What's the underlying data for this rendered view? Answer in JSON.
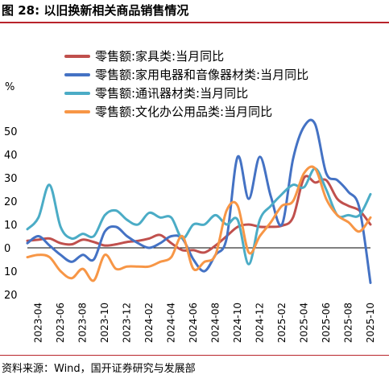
{
  "header": {
    "title": "图 28:  以旧换新相关商品销售情况"
  },
  "footer": {
    "source": "资料来源：Wind，国开证券研究与发展部"
  },
  "chart_data": {
    "type": "line",
    "title": "",
    "xlabel": "",
    "ylabel": "%",
    "ylim": [
      -20,
      50
    ],
    "y_ticks": [
      50,
      40,
      30,
      20,
      10,
      0,
      -10,
      -20
    ],
    "y_tick_labels": [
      "50",
      "40",
      "30",
      "20",
      "10",
      "0",
      "10",
      "20"
    ],
    "x": [
      "2023-03",
      "2023-04",
      "2023-05",
      "2023-06",
      "2023-07",
      "2023-08",
      "2023-09",
      "2023-10",
      "2023-11",
      "2023-12",
      "2024-01",
      "2024-02",
      "2024-03",
      "2024-04",
      "2024-05",
      "2024-06",
      "2024-07",
      "2024-08",
      "2024-09",
      "2024-10",
      "2024-11",
      "2024-12",
      "2025-01",
      "2025-02",
      "2025-03",
      "2025-04",
      "2025-05",
      "2025-06",
      "2025-07",
      "2025-08",
      "2025-09",
      "2025-10"
    ],
    "x_tick_labels": [
      "2023-04",
      "2023-06",
      "2023-08",
      "2023-10",
      "2023-12",
      "2024-02",
      "2024-04",
      "2024-06",
      "2024-08",
      "2024-10",
      "2024-12",
      "2025-02",
      "2025-04",
      "2025-06",
      "2025-08",
      "2025-10"
    ],
    "grid": false,
    "legend_position": "top-left",
    "series": [
      {
        "name": "零售额:家具类:当月同比",
        "color": "#c0504d",
        "values": [
          3,
          3.5,
          4,
          2,
          1.5,
          3.5,
          2.5,
          1,
          1.5,
          2.5,
          3,
          4,
          5.5,
          2,
          -1,
          -1,
          -2,
          1,
          5,
          9,
          10,
          9,
          9,
          9.5,
          13,
          30,
          28,
          29,
          21,
          18,
          16,
          10
        ]
      },
      {
        "name": "零售额:家用电器和音像器材类:当月同比",
        "color": "#4472c4",
        "values": [
          2,
          5,
          1,
          -3,
          -6,
          -3,
          -5,
          7,
          9,
          5,
          2,
          0,
          2,
          5,
          4,
          -5,
          -10,
          -3,
          4,
          39,
          21,
          39,
          22,
          10,
          38,
          52,
          53,
          32,
          29,
          24,
          17,
          -15
        ]
      },
      {
        "name": "零售额:通讯器材类:当月同比",
        "color": "#4bacc6",
        "values": [
          8,
          13,
          27,
          9,
          4,
          6,
          5,
          14,
          16,
          12,
          10,
          15,
          13,
          13,
          4,
          10,
          10,
          14,
          10,
          12,
          -7,
          12,
          18,
          23,
          27,
          26,
          34,
          25,
          14,
          14,
          14,
          23
        ]
      },
      {
        "name": "零售额:文化办公用品类:当月同比",
        "color": "#f79646",
        "values": [
          -4,
          -3,
          -4,
          -10,
          -13,
          -9,
          -14,
          -3,
          -9,
          -8,
          -8,
          -8,
          -6,
          -4,
          5,
          -9,
          -6,
          -3,
          16,
          18,
          -2,
          5,
          11,
          18,
          20,
          32,
          34,
          21,
          14,
          11,
          7,
          13
        ]
      }
    ]
  }
}
